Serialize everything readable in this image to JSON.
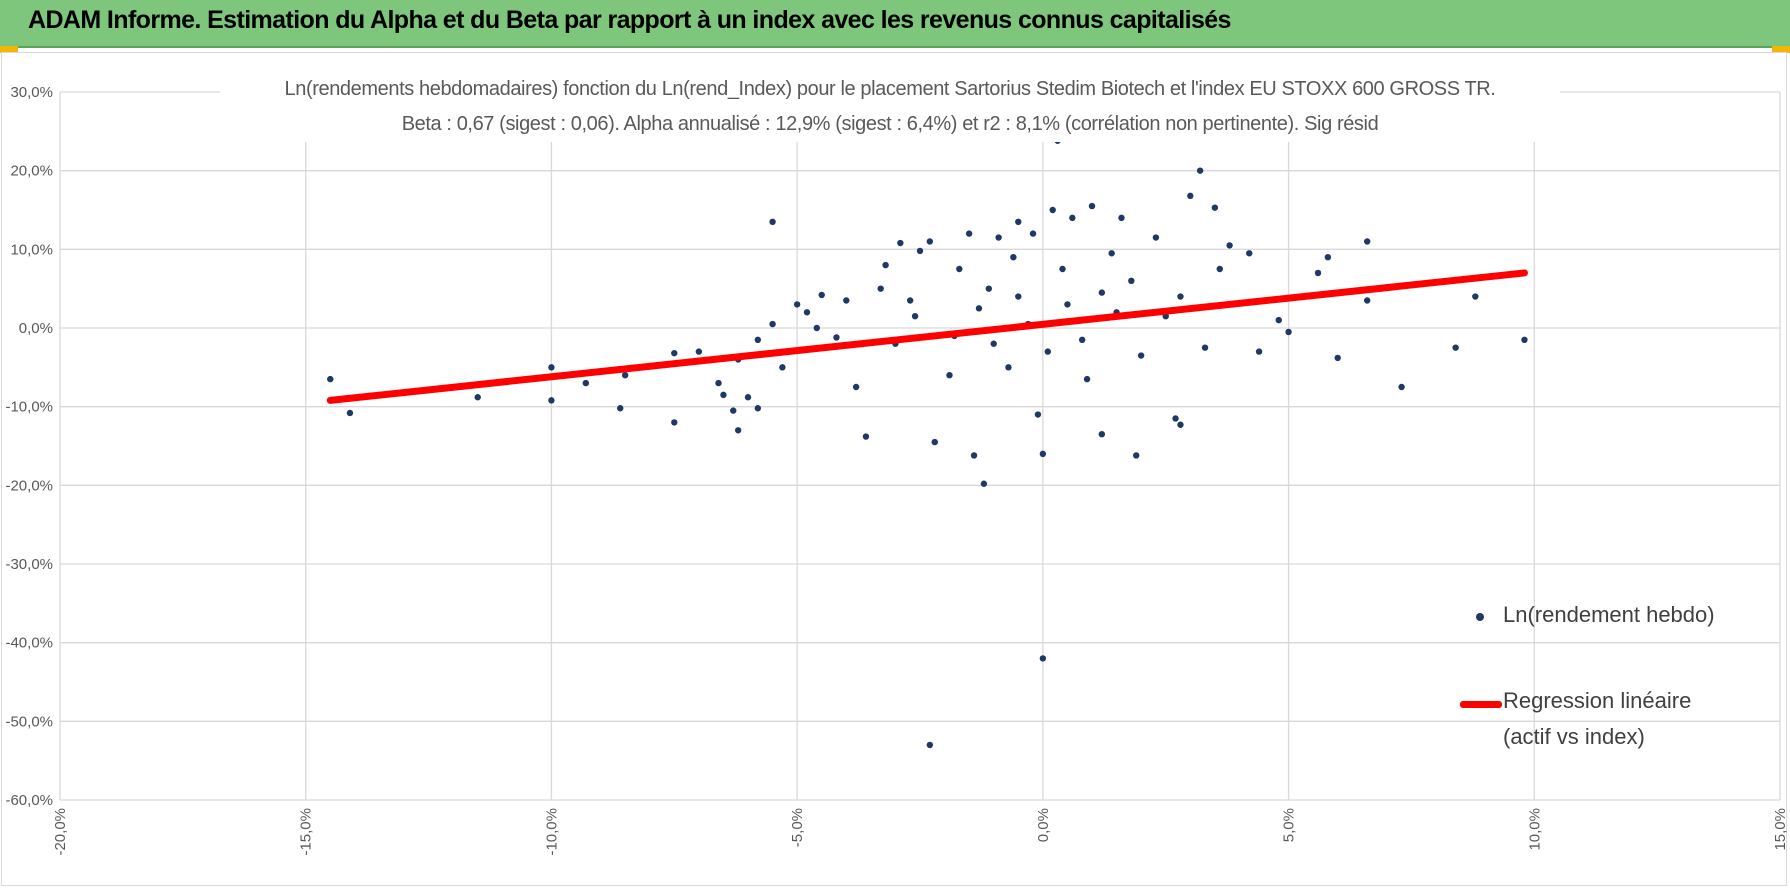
{
  "banner": {
    "title": "ADAM Informe. Estimation du Alpha et du Beta par rapport à un index avec les revenus connus capitalisés"
  },
  "colors": {
    "banner_bg": "#7dc67c",
    "accent": "#f2b705",
    "points": "#203864",
    "regression": "#ff0000",
    "grid": "#d9d9d9"
  },
  "chart_data": {
    "type": "scatter",
    "title_lines": [
      "Ln(rendements hebdomadaires) fonction du Ln(rend_Index) pour le placement Sartorius Stedim Biotech et l'index EU STOXX 600 GROSS TR.",
      "Beta : 0,67 (sigest : 0,06). Alpha annualisé : 12,9% (sigest : 6,4%) et r2 : 8,1% (corrélation non pertinente). Sig résid"
    ],
    "xlabel": "",
    "ylabel": "",
    "xlim": [
      -20,
      15
    ],
    "ylim": [
      -60,
      30
    ],
    "x_ticks": [
      "-20,0%",
      "-15,0%",
      "-10,0%",
      "-5,0%",
      "0,0%",
      "5,0%",
      "10,0%",
      "15,0%"
    ],
    "y_ticks": [
      "30,0%",
      "20,0%",
      "10,0%",
      "0,0%",
      "-10,0%",
      "-20,0%",
      "-30,0%",
      "-40,0%",
      "-50,0%",
      "-60,0%"
    ],
    "grid": true,
    "legend_position": "right",
    "series": [
      {
        "name": "Ln(rendement hebdo)",
        "kind": "scatter",
        "color": "#203864",
        "points": [
          [
            -14.5,
            -6.5
          ],
          [
            -14.1,
            -10.8
          ],
          [
            -11.5,
            -8.8
          ],
          [
            -10.0,
            -5.0
          ],
          [
            -10.0,
            -9.2
          ],
          [
            -9.3,
            -7.0
          ],
          [
            -8.6,
            -10.2
          ],
          [
            -8.5,
            -6.0
          ],
          [
            -7.5,
            -12.0
          ],
          [
            -7.5,
            -3.2
          ],
          [
            -7.0,
            -3.0
          ],
          [
            -6.6,
            -7.0
          ],
          [
            -6.5,
            -8.5
          ],
          [
            -6.3,
            -10.5
          ],
          [
            -6.2,
            -13.0
          ],
          [
            -6.2,
            -4.0
          ],
          [
            -5.8,
            -1.5
          ],
          [
            -6.0,
            -8.8
          ],
          [
            -5.8,
            -10.2
          ],
          [
            -5.5,
            0.5
          ],
          [
            -5.3,
            -5.0
          ],
          [
            -5.5,
            13.5
          ],
          [
            -5.0,
            3.0
          ],
          [
            -4.8,
            2.0
          ],
          [
            -4.6,
            0.0
          ],
          [
            -4.5,
            4.2
          ],
          [
            -4.2,
            -1.2
          ],
          [
            -4.0,
            3.5
          ],
          [
            -3.8,
            -7.5
          ],
          [
            -3.6,
            -13.8
          ],
          [
            -3.3,
            5.0
          ],
          [
            -3.2,
            8.0
          ],
          [
            -3.0,
            -2.0
          ],
          [
            -2.9,
            10.8
          ],
          [
            -2.7,
            3.5
          ],
          [
            -2.5,
            9.8
          ],
          [
            -2.3,
            11.0
          ],
          [
            -2.2,
            -14.5
          ],
          [
            -1.9,
            -6.0
          ],
          [
            -1.7,
            7.5
          ],
          [
            -1.5,
            12.0
          ],
          [
            -1.4,
            -16.2
          ],
          [
            -1.2,
            -19.8
          ],
          [
            -1.1,
            5.0
          ],
          [
            -0.9,
            11.5
          ],
          [
            -0.6,
            9.0
          ],
          [
            -0.5,
            13.5
          ],
          [
            -0.2,
            12.0
          ],
          [
            -0.1,
            -11.0
          ],
          [
            0.0,
            -16.0
          ],
          [
            0.2,
            15.0
          ],
          [
            0.3,
            23.8
          ],
          [
            0.6,
            14.0
          ],
          [
            1.0,
            15.5
          ],
          [
            1.2,
            -13.5
          ],
          [
            1.6,
            14.0
          ],
          [
            1.9,
            -16.2
          ],
          [
            2.3,
            11.5
          ],
          [
            2.7,
            -11.5
          ],
          [
            2.8,
            -12.3
          ],
          [
            3.0,
            16.8
          ],
          [
            3.2,
            20.0
          ],
          [
            3.5,
            15.3
          ],
          [
            3.6,
            7.5
          ],
          [
            3.8,
            10.5
          ],
          [
            4.2,
            9.5
          ],
          [
            4.4,
            -3.0
          ],
          [
            4.8,
            1.0
          ],
          [
            5.0,
            -0.5
          ],
          [
            5.6,
            7.0
          ],
          [
            5.8,
            9.0
          ],
          [
            6.0,
            -3.8
          ],
          [
            6.6,
            11.0
          ],
          [
            6.6,
            3.5
          ],
          [
            7.3,
            -7.5
          ],
          [
            8.4,
            -2.5
          ],
          [
            8.8,
            4.0
          ],
          [
            9.8,
            -1.5
          ],
          [
            0.0,
            -42.0
          ],
          [
            -2.3,
            -53.0
          ],
          [
            -0.5,
            4.0
          ],
          [
            0.5,
            3.0
          ],
          [
            1.5,
            2.0
          ],
          [
            2.5,
            1.5
          ],
          [
            -1.0,
            -2.0
          ],
          [
            0.8,
            -1.5
          ],
          [
            -0.3,
            0.5
          ],
          [
            1.2,
            4.5
          ],
          [
            2.0,
            -3.5
          ],
          [
            -1.8,
            -1.0
          ],
          [
            0.4,
            7.5
          ],
          [
            1.8,
            6.0
          ],
          [
            -0.7,
            -5.0
          ],
          [
            2.8,
            4.0
          ],
          [
            3.3,
            -2.5
          ],
          [
            -2.6,
            1.5
          ],
          [
            0.9,
            -6.5
          ],
          [
            1.4,
            9.5
          ],
          [
            -1.3,
            2.5
          ],
          [
            0.1,
            -3.0
          ]
        ]
      },
      {
        "name": "Regression linéaire (actif vs index)",
        "kind": "line",
        "color": "#ff0000",
        "x": [
          -14.5,
          9.8
        ],
        "y": [
          -9.2,
          7.0
        ]
      }
    ]
  },
  "legend": {
    "points_label": "Ln(rendement hebdo)",
    "line_label_1": "Regression linéaire",
    "line_label_2": "(actif vs index)"
  }
}
